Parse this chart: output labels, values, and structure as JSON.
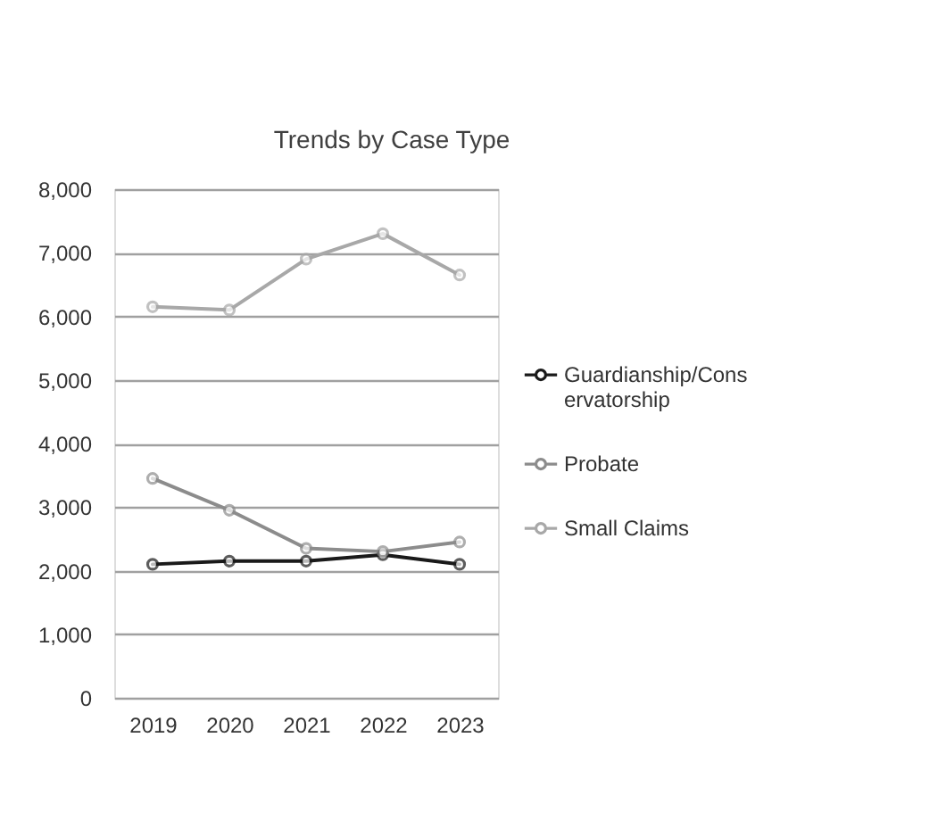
{
  "chart_data": {
    "type": "line",
    "title": "Trends by Case Type",
    "categories": [
      "2019",
      "2020",
      "2021",
      "2022",
      "2023"
    ],
    "series": [
      {
        "name": "Guardianship/Conservatorship",
        "color": "#1a1a1a",
        "values": [
          2100,
          2150,
          2150,
          2250,
          2100
        ]
      },
      {
        "name": "Probate",
        "color": "#8c8c8c",
        "values": [
          3450,
          2950,
          2350,
          2300,
          2450
        ]
      },
      {
        "name": "Small Claims",
        "color": "#a8a8a8",
        "values": [
          6150,
          6100,
          6900,
          7300,
          6650
        ]
      }
    ],
    "ylim": [
      0,
      8000
    ],
    "yticks": [
      0,
      {
        "value": 1000,
        "label": "1,000"
      },
      {
        "value": 2000,
        "label": "2,000"
      },
      {
        "value": 3000,
        "label": "3,000"
      },
      {
        "value": 4000,
        "label": "4,000"
      },
      {
        "value": 5000,
        "label": "5,000"
      },
      {
        "value": 6000,
        "label": "6,000"
      },
      {
        "value": 7000,
        "label": "7,000"
      },
      {
        "value": 8000,
        "label": "8,000"
      }
    ],
    "grid": "y",
    "legend": "right",
    "marker": "circle",
    "line_style": "solid"
  }
}
